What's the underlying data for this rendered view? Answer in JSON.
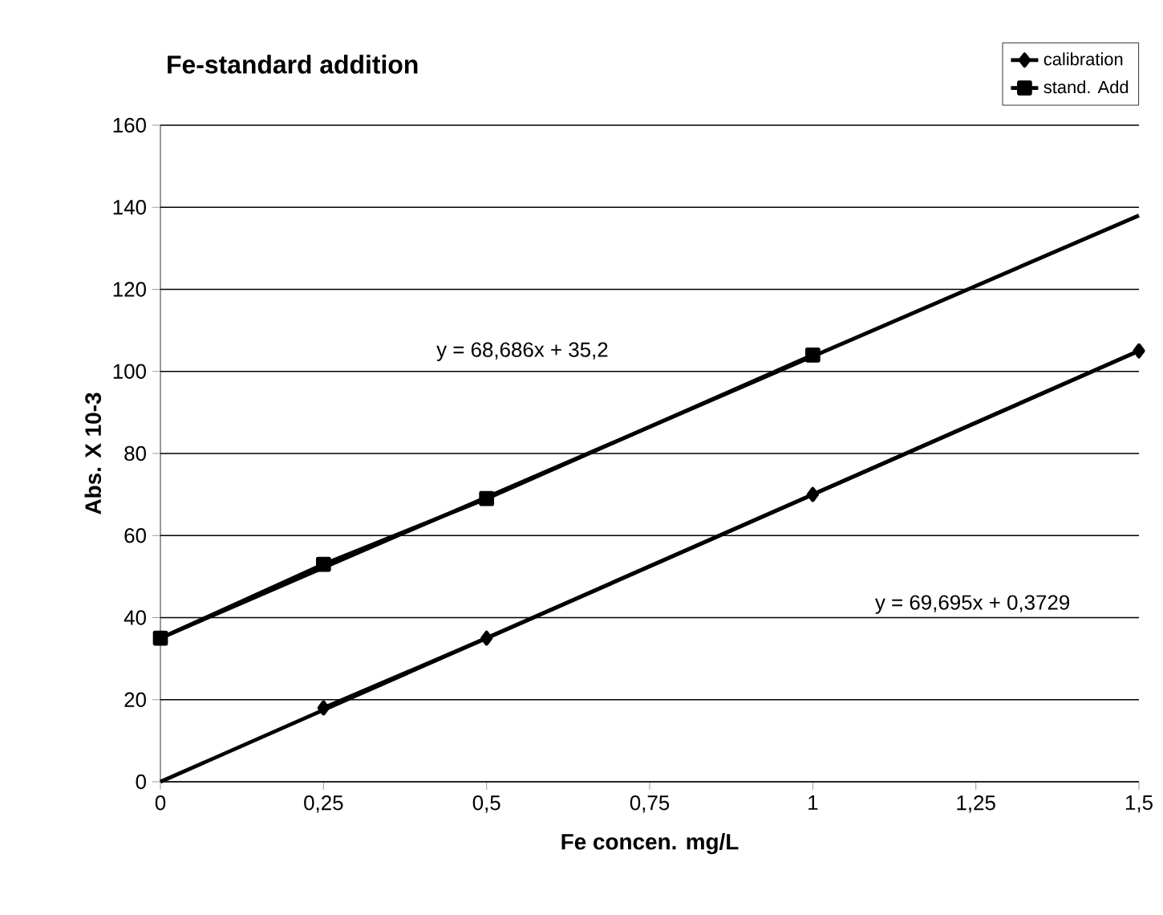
{
  "chart_data": {
    "type": "line",
    "title": "Fe-standard addition",
    "xlabel": "Fe concen. mg/L",
    "ylabel": "Abs. X 10-3",
    "xlim": [
      0,
      1.5
    ],
    "ylim": [
      0,
      160
    ],
    "xticks": [
      0,
      {
        "value": 0.25,
        "label": "0,25"
      },
      {
        "value": 0.5,
        "label": "0,5"
      },
      {
        "value": 0.75,
        "label": "0,75"
      },
      1,
      {
        "value": 1.25,
        "label": "1,25"
      },
      {
        "value": 1.5,
        "label": "1,5"
      }
    ],
    "yticks": [
      0,
      20,
      40,
      60,
      80,
      100,
      120,
      140,
      160
    ],
    "grid": "y",
    "legend": "top right",
    "series": [
      {
        "name": "calibration",
        "color": "#000000",
        "marker": "diamond",
        "x": [
          0.25,
          0.5,
          1,
          1.5
        ],
        "values": [
          18,
          35,
          70,
          105
        ]
      },
      {
        "name": "stand. Add",
        "color": "#000000",
        "marker": "square",
        "x": [
          0,
          0.25,
          0.5,
          1
        ],
        "values": [
          35,
          53,
          69,
          104
        ]
      },
      {
        "color": "#000000",
        "marker": "none",
        "x": [
          0,
          1.5
        ],
        "values": [
          0,
          105
        ]
      },
      {
        "color": "#000000",
        "marker": "none",
        "x": [
          0,
          1.5
        ],
        "values": [
          35,
          138
        ]
      }
    ],
    "annotations": [
      "y = 68,686x + 35,2",
      "y = 69,695x + 0,3729"
    ]
  }
}
